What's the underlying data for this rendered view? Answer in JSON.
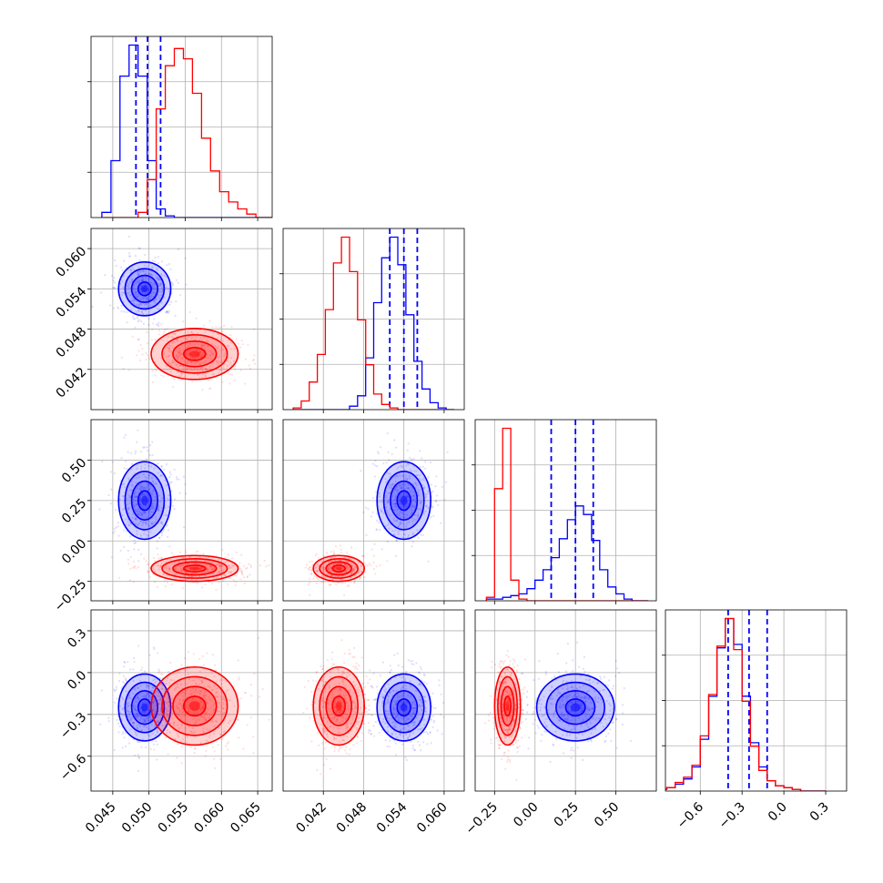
{
  "chart_data": {
    "type": "corner",
    "grid": true,
    "colors": {
      "blue": "#0000ff",
      "red": "#ff0000"
    },
    "parameters": [
      {
        "range": [
          0.042,
          0.067
        ],
        "ticks": [
          0.045,
          0.05,
          0.055,
          0.06,
          0.065
        ],
        "tick_labels": [
          "0.045",
          "0.050",
          "0.055",
          "0.060",
          "0.065"
        ]
      },
      {
        "range": [
          0.036,
          0.063
        ],
        "ticks": [
          0.042,
          0.048,
          0.054,
          0.06
        ],
        "tick_labels": [
          "0.042",
          "0.048",
          "0.054",
          "0.060"
        ]
      },
      {
        "range": [
          -0.37,
          0.75
        ],
        "ticks": [
          -0.25,
          0.0,
          0.25,
          0.5
        ],
        "tick_labels": [
          "−0.25",
          "0.00",
          "0.25",
          "0.50"
        ]
      },
      {
        "range": [
          -0.85,
          0.45
        ],
        "ticks": [
          -0.6,
          -0.3,
          0.0,
          0.3
        ],
        "tick_labels": [
          "−0.6",
          "−0.3",
          "0.0",
          "0.3"
        ]
      }
    ],
    "series": [
      {
        "color": "blue",
        "quantiles": [
          [
            0.0482,
            0.0498,
            0.0516
          ],
          [
            0.0519,
            0.054,
            0.056
          ],
          [
            0.1,
            0.25,
            0.36
          ],
          [
            -0.4,
            -0.25,
            -0.12
          ]
        ],
        "centers": [
          0.0494,
          0.054,
          0.25,
          -0.25
        ],
        "sigmas": [
          0.0018,
          0.002,
          0.12,
          0.12
        ],
        "histograms": [
          {
            "bin_start": 0.0435,
            "bin_width": 0.00125,
            "counts": [
              3,
              33,
              82,
              100,
              82,
              33,
              5,
              1,
              0,
              0,
              0,
              0,
              0,
              0,
              0,
              0,
              0,
              0,
              0,
              0
            ]
          },
          {
            "bin_start": 0.0375,
            "bin_width": 0.0012,
            "counts": [
              0,
              0,
              0,
              0,
              0,
              0,
              0,
              2,
              8,
              30,
              62,
              88,
              100,
              84,
              55,
              28,
              12,
              4,
              1,
              0
            ]
          },
          {
            "bin_start": -0.3,
            "bin_width": 0.05,
            "counts": [
              1,
              1,
              2,
              3,
              4,
              7,
              12,
              18,
              25,
              36,
              47,
              55,
              50,
              35,
              18,
              8,
              4,
              1,
              0,
              0
            ]
          },
          {
            "bin_start": -0.9,
            "bin_width": 0.06,
            "counts": [
              1,
              2,
              4,
              7,
              14,
              30,
              55,
              83,
              100,
              85,
              55,
              28,
              14,
              6,
              3,
              2,
              1,
              0,
              0,
              0
            ]
          }
        ]
      },
      {
        "color": "red",
        "centers": [
          0.0563,
          0.0443,
          -0.17,
          -0.24
        ],
        "sigmas": [
          0.003,
          0.0019,
          0.04,
          0.14
        ],
        "histograms": [
          {
            "bin_start": 0.0435,
            "bin_width": 0.00125,
            "counts": [
              0,
              0,
              0,
              0,
              3,
              22,
              63,
              88,
              98,
              92,
              72,
              46,
              27,
              15,
              9,
              5,
              2,
              0,
              0,
              0
            ]
          },
          {
            "bin_start": 0.0375,
            "bin_width": 0.0012,
            "counts": [
              1,
              5,
              16,
              32,
              58,
              85,
              100,
              80,
              52,
              26,
              9,
              3,
              1,
              0,
              0,
              0,
              0,
              0,
              0,
              0
            ]
          },
          {
            "bin_start": -0.3,
            "bin_width": 0.05,
            "counts": [
              2,
              65,
              100,
              12,
              1,
              0,
              0,
              0,
              0,
              0,
              0,
              0,
              0,
              0,
              0,
              0,
              0,
              0,
              0,
              0
            ]
          },
          {
            "bin_start": -0.9,
            "bin_width": 0.06,
            "counts": [
              1,
              2,
              5,
              8,
              15,
              32,
              56,
              84,
              100,
              82,
              52,
              26,
              12,
              6,
              3,
              2,
              1,
              0,
              0,
              0
            ]
          }
        ]
      }
    ]
  }
}
